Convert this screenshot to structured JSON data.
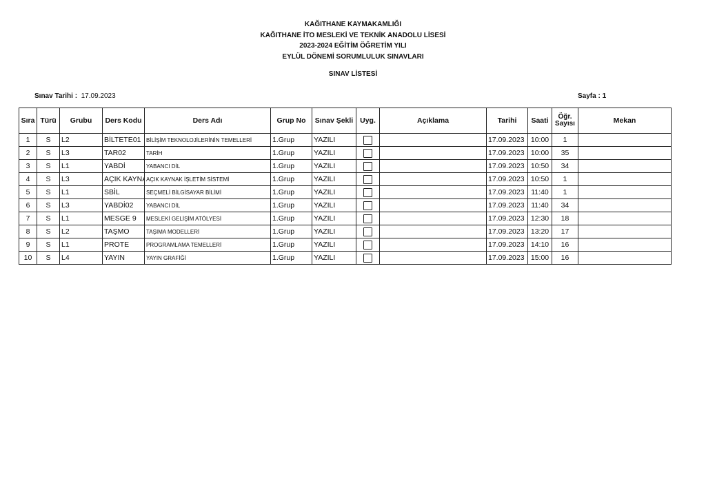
{
  "header": {
    "lines": [
      "KAĞITHANE KAYMAKAMLIĞI",
      "KAĞITHANE İTO MESLEKİ VE TEKNİK ANADOLU LİSESİ",
      "2023-2024 EĞİTİM ÖĞRETİM YILI",
      "EYLÜL DÖNEMİ SORUMLULUK SINAVLARI"
    ],
    "subtitle": "SINAV LİSTESİ",
    "date_label": "Sınav Tarihi :",
    "date_value": "17.09.2023",
    "page_label": "Sayfa :",
    "page_value": "1"
  },
  "table": {
    "columns": [
      "Sıra",
      "Türü",
      "Grubu",
      "Ders Kodu",
      "Ders Adı",
      "Grup No",
      "Sınav Şekli",
      "Uyg.",
      "Açıklama",
      "Tarihi",
      "Saati",
      "Öğr.",
      "Sayısı",
      "Mekan"
    ],
    "rows": [
      {
        "sira": "1",
        "turu": "S",
        "grubu": "L2",
        "kod": "BİLTETE01",
        "ad": "BİLİŞİM TEKNOLOJİLERİNİN TEMELLERİ",
        "grup": "1.Grup",
        "sekil": "YAZILI",
        "uyg": false,
        "aciklama": "",
        "tarih": "17.09.2023",
        "saat": "10:00",
        "sayi": "1",
        "mekan": ""
      },
      {
        "sira": "2",
        "turu": "S",
        "grubu": "L3",
        "kod": "TAR02",
        "ad": "TARİH",
        "grup": "1.Grup",
        "sekil": "YAZILI",
        "uyg": false,
        "aciklama": "",
        "tarih": "17.09.2023",
        "saat": "10:00",
        "sayi": "35",
        "mekan": ""
      },
      {
        "sira": "3",
        "turu": "S",
        "grubu": "L1",
        "kod": "YABDİ",
        "ad": "YABANCI DİL",
        "grup": "1.Grup",
        "sekil": "YAZILI",
        "uyg": false,
        "aciklama": "",
        "tarih": "17.09.2023",
        "saat": "10:50",
        "sayi": "34",
        "mekan": ""
      },
      {
        "sira": "4",
        "turu": "S",
        "grubu": "L3",
        "kod": "AÇIK KAYNA",
        "ad": "AÇIK KAYNAK İŞLETİM SİSTEMİ",
        "grup": "1.Grup",
        "sekil": "YAZILI",
        "uyg": false,
        "aciklama": "",
        "tarih": "17.09.2023",
        "saat": "10:50",
        "sayi": "1",
        "mekan": ""
      },
      {
        "sira": "5",
        "turu": "S",
        "grubu": "L1",
        "kod": "SBİL",
        "ad": "SEÇMELİ BİLGİSAYAR BİLİMİ",
        "grup": "1.Grup",
        "sekil": "YAZILI",
        "uyg": false,
        "aciklama": "",
        "tarih": "17.09.2023",
        "saat": "11:40",
        "sayi": "1",
        "mekan": ""
      },
      {
        "sira": "6",
        "turu": "S",
        "grubu": "L3",
        "kod": "YABDİ02",
        "ad": "YABANCI DİL",
        "grup": "1.Grup",
        "sekil": "YAZILI",
        "uyg": false,
        "aciklama": "",
        "tarih": "17.09.2023",
        "saat": "11:40",
        "sayi": "34",
        "mekan": ""
      },
      {
        "sira": "7",
        "turu": "S",
        "grubu": "L1",
        "kod": "MESGE 9",
        "ad": "MESLEKİ GELİŞİM ATÖLYESİ",
        "grup": "1.Grup",
        "sekil": "YAZILI",
        "uyg": false,
        "aciklama": "",
        "tarih": "17.09.2023",
        "saat": "12:30",
        "sayi": "18",
        "mekan": ""
      },
      {
        "sira": "8",
        "turu": "S",
        "grubu": "L2",
        "kod": "TAŞMO",
        "ad": "TAŞIMA MODELLERİ",
        "grup": "1.Grup",
        "sekil": "YAZILI",
        "uyg": false,
        "aciklama": "",
        "tarih": "17.09.2023",
        "saat": "13:20",
        "sayi": "17",
        "mekan": ""
      },
      {
        "sira": "9",
        "turu": "S",
        "grubu": "L1",
        "kod": "PROTE",
        "ad": "PROGRAMLAMA TEMELLERİ",
        "grup": "1.Grup",
        "sekil": "YAZILI",
        "uyg": false,
        "aciklama": "",
        "tarih": "17.09.2023",
        "saat": "14:10",
        "sayi": "16",
        "mekan": ""
      },
      {
        "sira": "10",
        "turu": "S",
        "grubu": "L4",
        "kod": "YAYIN",
        "ad": "YAYIN GRAFİĞİ",
        "grup": "1.Grup",
        "sekil": "YAZILI",
        "uyg": false,
        "aciklama": "",
        "tarih": "17.09.2023",
        "saat": "15:00",
        "sayi": "16",
        "mekan": ""
      }
    ]
  }
}
